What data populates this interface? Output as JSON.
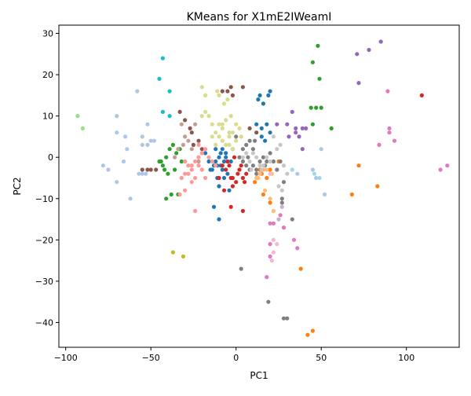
{
  "chart_data": {
    "type": "scatter",
    "title": "KMeans for X1mE2IWeamI",
    "xlabel": "PC1",
    "ylabel": "PC2",
    "xlim": [
      -104,
      131
    ],
    "ylim": [
      -46,
      32
    ],
    "xticks": [
      -100,
      -50,
      0,
      50,
      100
    ],
    "yticks": [
      -40,
      -30,
      -20,
      -10,
      0,
      10,
      20,
      30
    ],
    "grid": false,
    "legend": "none",
    "series": [
      {
        "color": "#1f77b4",
        "points": [
          [
            -15,
            -3
          ],
          [
            -13,
            -2
          ],
          [
            -12,
            -1
          ],
          [
            -10,
            0
          ],
          [
            -9,
            -2
          ],
          [
            -11,
            -5
          ],
          [
            -10,
            -7
          ],
          [
            -8,
            -3
          ],
          [
            -7,
            -1
          ],
          [
            -6,
            0
          ],
          [
            -5,
            -4
          ],
          [
            -4,
            -8
          ],
          [
            -13,
            -12
          ],
          [
            -10,
            -15
          ],
          [
            -18,
            1
          ],
          [
            -16,
            -1
          ],
          [
            -14,
            -3
          ],
          [
            -11,
            -2
          ],
          [
            -8,
            2
          ],
          [
            -6,
            1
          ],
          [
            -12,
            2
          ],
          [
            -9,
            1
          ],
          [
            -7,
            -5
          ],
          [
            -5,
            -1
          ],
          [
            14,
            15
          ],
          [
            16,
            13
          ],
          [
            15,
            7
          ],
          [
            18,
            8
          ],
          [
            20,
            6
          ],
          [
            12,
            8
          ],
          [
            15,
            5
          ],
          [
            17,
            4
          ],
          [
            19,
            15
          ],
          [
            20,
            16
          ],
          [
            13,
            14
          ],
          [
            -3,
            -1
          ],
          [
            -2,
            2
          ]
        ]
      },
      {
        "color": "#ff7f0e",
        "points": [
          [
            11,
            -6
          ],
          [
            15,
            -4
          ],
          [
            18,
            -5
          ],
          [
            14,
            -3
          ],
          [
            20,
            -3
          ],
          [
            16,
            -9
          ],
          [
            25,
            -1
          ],
          [
            38,
            -27
          ],
          [
            72,
            -2
          ],
          [
            68,
            -9
          ],
          [
            83,
            -7
          ],
          [
            42,
            -43
          ],
          [
            45,
            -42
          ],
          [
            20,
            -11
          ]
        ]
      },
      {
        "color": "#2ca02c",
        "points": [
          [
            -45,
            -1
          ],
          [
            -43,
            -2
          ],
          [
            -41,
            0
          ],
          [
            -39,
            2
          ],
          [
            -37,
            3
          ],
          [
            -42,
            -3
          ],
          [
            -40,
            -4
          ],
          [
            -35,
            1
          ],
          [
            -33,
            2
          ],
          [
            -32,
            -1
          ],
          [
            -38,
            -9
          ],
          [
            -34,
            -9
          ],
          [
            -41,
            -10
          ],
          [
            -44,
            -1
          ],
          [
            -36,
            -3
          ],
          [
            45,
            23
          ],
          [
            48,
            27
          ],
          [
            49,
            19
          ],
          [
            47,
            12
          ],
          [
            50,
            12
          ],
          [
            44,
            12
          ],
          [
            45,
            8
          ],
          [
            56,
            7
          ]
        ]
      },
      {
        "color": "#d62728",
        "points": [
          [
            -8,
            -2
          ],
          [
            -6,
            -3
          ],
          [
            -4,
            -2
          ],
          [
            -2,
            -5
          ],
          [
            0,
            -6
          ],
          [
            2,
            -3
          ],
          [
            3,
            -2
          ],
          [
            1,
            -4
          ],
          [
            -1,
            0
          ],
          [
            4,
            -5
          ],
          [
            -3,
            -5
          ],
          [
            -2,
            -7
          ],
          [
            5,
            -6
          ],
          [
            -10,
            -5
          ],
          [
            -3,
            -12
          ],
          [
            4,
            -13
          ],
          [
            -7,
            -8
          ],
          [
            6,
            -4
          ],
          [
            109,
            15
          ],
          [
            -5,
            -1
          ]
        ]
      },
      {
        "color": "#9467bd",
        "points": [
          [
            33,
            11
          ],
          [
            35,
            7
          ],
          [
            37,
            5
          ],
          [
            39,
            7
          ],
          [
            41,
            7
          ],
          [
            30,
            8
          ],
          [
            31,
            5
          ],
          [
            35,
            6
          ],
          [
            24,
            8
          ],
          [
            39,
            2
          ],
          [
            72,
            18
          ],
          [
            71,
            25
          ],
          [
            78,
            26
          ],
          [
            85,
            28
          ]
        ]
      },
      {
        "color": "#8c564b",
        "points": [
          [
            -55,
            -3
          ],
          [
            -52,
            -3
          ],
          [
            -50,
            -3
          ],
          [
            -47,
            -3
          ],
          [
            -33,
            11
          ],
          [
            -30,
            9
          ],
          [
            -26,
            6
          ],
          [
            -27,
            7
          ],
          [
            -25,
            3
          ],
          [
            -22,
            4
          ],
          [
            -20,
            2
          ],
          [
            -8,
            16
          ],
          [
            -5,
            16
          ],
          [
            -3,
            17
          ],
          [
            -2,
            15
          ],
          [
            4,
            17
          ],
          [
            8,
            7
          ],
          [
            12,
            6
          ]
        ]
      },
      {
        "color": "#e377c2",
        "points": [
          [
            26,
            -14
          ],
          [
            22,
            -16
          ],
          [
            20,
            -16
          ],
          [
            18,
            -29
          ],
          [
            20,
            -24
          ],
          [
            20,
            -21
          ],
          [
            28,
            -17
          ],
          [
            34,
            -20
          ],
          [
            36,
            -22
          ],
          [
            84,
            3
          ],
          [
            90,
            6
          ],
          [
            90,
            7
          ],
          [
            93,
            4
          ],
          [
            89,
            16
          ],
          [
            120,
            -3
          ],
          [
            124,
            -2
          ]
        ]
      },
      {
        "color": "#7f7f7f",
        "points": [
          [
            10,
            -2
          ],
          [
            12,
            -3
          ],
          [
            14,
            -1
          ],
          [
            16,
            0
          ],
          [
            8,
            -3
          ],
          [
            6,
            -2
          ],
          [
            4,
            -1
          ],
          [
            2,
            0
          ],
          [
            6,
            3
          ],
          [
            8,
            4
          ],
          [
            10,
            2
          ],
          [
            12,
            -4
          ],
          [
            7,
            0
          ],
          [
            4,
            2
          ],
          [
            18,
            -1
          ],
          [
            20,
            1
          ],
          [
            22,
            -1
          ],
          [
            24,
            -3
          ],
          [
            26,
            -1
          ],
          [
            28,
            -6
          ],
          [
            27,
            -10
          ],
          [
            27,
            -11
          ],
          [
            33,
            -15
          ],
          [
            3,
            -27
          ],
          [
            19,
            -35
          ],
          [
            28,
            -39
          ],
          [
            30,
            -39
          ],
          [
            17,
            -2
          ],
          [
            0,
            5
          ],
          [
            11,
            4
          ]
        ]
      },
      {
        "color": "#bcbd22",
        "points": [
          [
            -37,
            -23
          ],
          [
            -31,
            -24
          ]
        ]
      },
      {
        "color": "#17becf",
        "points": [
          [
            -43,
            24
          ],
          [
            -45,
            19
          ],
          [
            -39,
            16
          ],
          [
            -43,
            11
          ],
          [
            -39,
            10
          ]
        ]
      },
      {
        "color": "#aec7e8",
        "points": [
          [
            -78,
            -2
          ],
          [
            -75,
            -3
          ],
          [
            -70,
            -6
          ],
          [
            -66,
            -1
          ],
          [
            -70,
            6
          ],
          [
            -65,
            5
          ],
          [
            -64,
            2
          ],
          [
            -62,
            -10
          ],
          [
            -57,
            -4
          ],
          [
            -55,
            -4
          ],
          [
            -53,
            -4
          ],
          [
            -55,
            3
          ],
          [
            -52,
            3
          ],
          [
            -55,
            5
          ],
          [
            -50,
            4
          ],
          [
            -52,
            8
          ],
          [
            -48,
            4
          ],
          [
            -70,
            10
          ],
          [
            -58,
            16
          ],
          [
            45,
            -3
          ],
          [
            47,
            -5
          ],
          [
            50,
            2
          ],
          [
            52,
            -9
          ],
          [
            36,
            -4
          ]
        ]
      },
      {
        "color": "#ffbb78",
        "points": [
          [
            12,
            -5
          ],
          [
            16,
            -3
          ],
          [
            13,
            -5
          ],
          [
            14,
            -4
          ],
          [
            17,
            -8
          ],
          [
            21,
            -4
          ],
          [
            20,
            -10
          ],
          [
            22,
            -13
          ],
          [
            18,
            -3
          ]
        ]
      },
      {
        "color": "#98df8a",
        "points": [
          [
            -93,
            10
          ],
          [
            -90,
            7
          ]
        ]
      },
      {
        "color": "#ff9896",
        "points": [
          [
            -30,
            -1
          ],
          [
            -28,
            -2
          ],
          [
            -26,
            -3
          ],
          [
            -24,
            -1
          ],
          [
            -22,
            0
          ],
          [
            -20,
            1
          ],
          [
            -18,
            2
          ],
          [
            -16,
            0
          ],
          [
            -14,
            -1
          ],
          [
            -12,
            -2
          ],
          [
            -24,
            -5
          ],
          [
            -26,
            -2
          ],
          [
            -28,
            -4
          ],
          [
            -30,
            -8
          ],
          [
            -32,
            -5
          ],
          [
            -33,
            -9
          ],
          [
            -22,
            -2
          ],
          [
            -20,
            -3
          ],
          [
            -18,
            -5
          ],
          [
            -24,
            -13
          ],
          [
            -30,
            -4
          ],
          [
            -22,
            3
          ],
          [
            -26,
            -6
          ]
        ]
      },
      {
        "color": "#c5b0d5",
        "points": [
          [
            25,
            -15
          ],
          [
            27,
            -12
          ]
        ]
      },
      {
        "color": "#c49c94",
        "points": [
          [
            -32,
            8
          ],
          [
            -30,
            5
          ],
          [
            -28,
            4
          ],
          [
            -34,
            2
          ],
          [
            -31,
            3
          ],
          [
            -26,
            2
          ],
          [
            -24,
            8
          ],
          [
            -22,
            -1
          ],
          [
            -36,
            0
          ]
        ]
      },
      {
        "color": "#f7b6d2",
        "points": [
          [
            20,
            -4
          ],
          [
            22,
            -20
          ],
          [
            22,
            -23
          ],
          [
            21,
            -25
          ],
          [
            24,
            -21
          ]
        ]
      },
      {
        "color": "#dbdb8d",
        "points": [
          [
            -20,
            17
          ],
          [
            -18,
            15
          ],
          [
            -16,
            10
          ],
          [
            -14,
            8
          ],
          [
            -12,
            6
          ],
          [
            -10,
            5
          ],
          [
            -8,
            4
          ],
          [
            -6,
            3
          ],
          [
            -4,
            5
          ],
          [
            -2,
            6
          ],
          [
            0,
            4
          ],
          [
            2,
            7
          ],
          [
            -12,
            3
          ],
          [
            -10,
            8
          ],
          [
            -8,
            7
          ],
          [
            -6,
            9
          ],
          [
            -4,
            6
          ],
          [
            -2,
            2
          ],
          [
            -5,
            14
          ],
          [
            -10,
            15
          ],
          [
            -20,
            10
          ],
          [
            -18,
            11
          ],
          [
            -14,
            5
          ],
          [
            -8,
            8
          ],
          [
            -4,
            3
          ],
          [
            0,
            8
          ],
          [
            3,
            5
          ],
          [
            -3,
            10
          ],
          [
            -11,
            16
          ],
          [
            -7,
            13
          ]
        ]
      },
      {
        "color": "#c7c7c7",
        "points": [
          [
            12,
            0
          ],
          [
            14,
            -2
          ],
          [
            10,
            1
          ],
          [
            8,
            -1
          ],
          [
            16,
            -2
          ],
          [
            18,
            0
          ],
          [
            6,
            1
          ],
          [
            4,
            0
          ],
          [
            24,
            2
          ],
          [
            26,
            3
          ],
          [
            28,
            -2
          ],
          [
            30,
            -4
          ],
          [
            20,
            -1
          ],
          [
            22,
            5
          ],
          [
            25,
            -7
          ],
          [
            27,
            -8
          ],
          [
            15,
            -3
          ],
          [
            9,
            -3
          ]
        ]
      },
      {
        "color": "#9edae5",
        "points": [
          [
            46,
            -4
          ],
          [
            49,
            -5
          ],
          [
            33,
            -3
          ]
        ]
      }
    ]
  }
}
